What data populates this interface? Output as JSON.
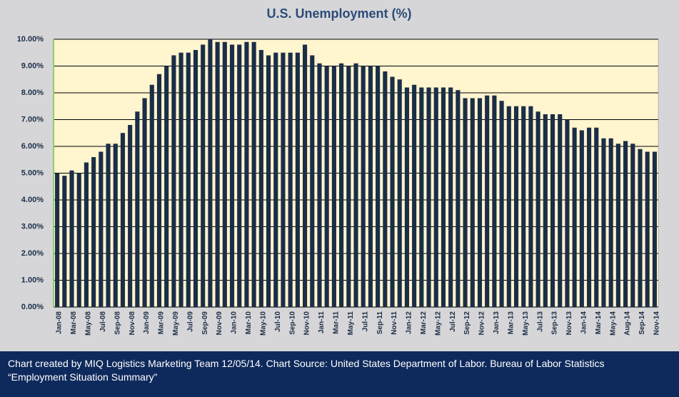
{
  "chart_data": {
    "type": "bar",
    "title": "U.S. Unemployment (%)",
    "note": "Chart created by MIQ Logistics Marketing Team 12/05/14. Chart Source: United States Department of Labor. Bureau of Labor Statistics “Employment Situation Summary”",
    "categories": [
      "Jan-08",
      null,
      "Mar-08",
      null,
      "May-08",
      null,
      "Jul-08",
      null,
      "Sep-08",
      null,
      "Nov-08",
      null,
      "Jan-09",
      null,
      "Mar-09",
      null,
      "May-09",
      null,
      "Jul-09",
      null,
      "Sep-09",
      null,
      "Nov-09",
      null,
      "Jan-10",
      null,
      "Mar-10",
      null,
      "May-10",
      null,
      "Jul-10",
      null,
      "Sep-10",
      null,
      "Nov-10",
      null,
      "Jan-11",
      null,
      "Mar-11",
      null,
      "May-11",
      null,
      "Jul-11",
      null,
      "Sep-11",
      null,
      "Nov-11",
      null,
      "Jan-12",
      null,
      "Mar-12",
      null,
      "May-12",
      null,
      "Jul-12",
      null,
      "Sep-12",
      null,
      "Nov-12",
      null,
      "Jan-13",
      null,
      "Mar-13",
      null,
      "May-13",
      null,
      "Jul-13",
      null,
      "Sep-13",
      null,
      "Nov-13",
      null,
      "Jan-14",
      null,
      "Mar-14",
      null,
      "May-14",
      null,
      "Aug-14",
      null,
      "Sep-14",
      null,
      "Nov-14"
    ],
    "values": [
      5.0,
      4.9,
      5.1,
      5.0,
      5.4,
      5.6,
      5.8,
      6.1,
      6.1,
      6.5,
      6.8,
      7.3,
      7.8,
      8.3,
      8.7,
      9.0,
      9.4,
      9.5,
      9.5,
      9.6,
      9.8,
      10.0,
      9.9,
      9.9,
      9.8,
      9.8,
      9.9,
      9.9,
      9.6,
      9.4,
      9.5,
      9.5,
      9.5,
      9.5,
      9.8,
      9.4,
      9.1,
      9.0,
      9.0,
      9.1,
      9.0,
      9.1,
      9.0,
      9.0,
      9.0,
      8.8,
      8.6,
      8.5,
      8.2,
      8.3,
      8.2,
      8.2,
      8.2,
      8.2,
      8.2,
      8.1,
      7.8,
      7.8,
      7.8,
      7.9,
      7.9,
      7.7,
      7.5,
      7.5,
      7.5,
      7.5,
      7.3,
      7.2,
      7.2,
      7.2,
      7.0,
      6.7,
      6.6,
      6.7,
      6.7,
      6.3,
      6.3,
      6.1,
      6.2,
      6.1,
      5.9,
      5.8,
      5.8
    ],
    "color": "#1b2d47",
    "ylim": [
      0,
      10
    ],
    "yticks": [
      {
        "value": 0,
        "label": "0.00%"
      },
      {
        "value": 1,
        "label": "1.00%"
      },
      {
        "value": 2,
        "label": "2.00%"
      },
      {
        "value": 3,
        "label": "3.00%"
      },
      {
        "value": 4,
        "label": "4.00%"
      },
      {
        "value": 5,
        "label": "5.00%"
      },
      {
        "value": 6,
        "label": "6.00%"
      },
      {
        "value": 7,
        "label": "7.00%"
      },
      {
        "value": 8,
        "label": "8.00%"
      },
      {
        "value": 9,
        "label": "9.00%"
      },
      {
        "value": 10,
        "label": "10.00%"
      }
    ],
    "grid": true
  }
}
